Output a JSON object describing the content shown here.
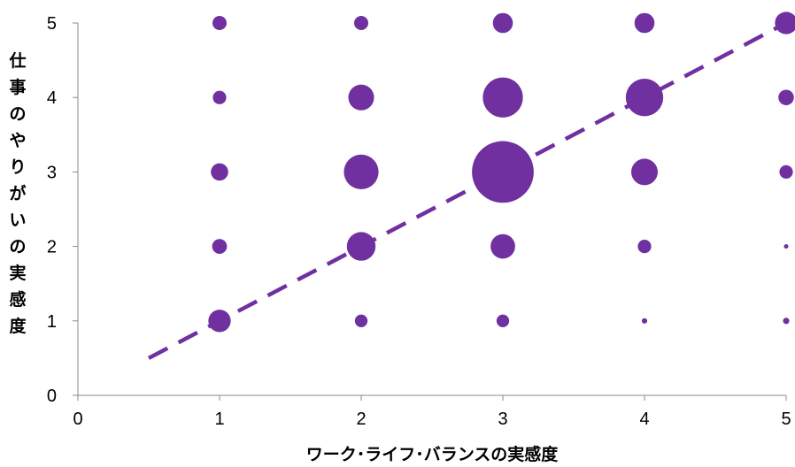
{
  "chart_data": {
    "type": "scatter",
    "subtype": "bubble",
    "xlabel": "ワーク･ライフ･バランスの実感度",
    "ylabel": "仕事のやりがいの実感度",
    "xlim": [
      0,
      5
    ],
    "ylim": [
      0,
      5
    ],
    "x_ticks": [
      "0",
      "1",
      "2",
      "3",
      "4",
      "5"
    ],
    "y_ticks": [
      "0",
      "1",
      "2",
      "3",
      "4",
      "5"
    ],
    "grid": false,
    "legend": "none",
    "marker_color": "#7030A0",
    "points": [
      {
        "x": 1,
        "y": 5,
        "size": 1.0
      },
      {
        "x": 2,
        "y": 5,
        "size": 1.0
      },
      {
        "x": 3,
        "y": 5,
        "size": 2.0
      },
      {
        "x": 4,
        "y": 5,
        "size": 2.0
      },
      {
        "x": 5,
        "y": 5,
        "size": 2.5
      },
      {
        "x": 1,
        "y": 4,
        "size": 0.9
      },
      {
        "x": 2,
        "y": 4,
        "size": 3.3
      },
      {
        "x": 3,
        "y": 4,
        "size": 8.0
      },
      {
        "x": 4,
        "y": 4,
        "size": 7.0
      },
      {
        "x": 5,
        "y": 4,
        "size": 1.2
      },
      {
        "x": 1,
        "y": 3,
        "size": 1.5
      },
      {
        "x": 2,
        "y": 3,
        "size": 6.0
      },
      {
        "x": 3,
        "y": 3,
        "size": 19.0
      },
      {
        "x": 4,
        "y": 3,
        "size": 3.5
      },
      {
        "x": 5,
        "y": 3,
        "size": 0.9
      },
      {
        "x": 1,
        "y": 2,
        "size": 1.1
      },
      {
        "x": 2,
        "y": 2,
        "size": 4.1
      },
      {
        "x": 3,
        "y": 2,
        "size": 3.0
      },
      {
        "x": 4,
        "y": 2,
        "size": 0.9
      },
      {
        "x": 5,
        "y": 2,
        "size": 0.1
      },
      {
        "x": 1,
        "y": 1,
        "size": 2.5
      },
      {
        "x": 2,
        "y": 1,
        "size": 0.8
      },
      {
        "x": 3,
        "y": 1,
        "size": 0.8
      },
      {
        "x": 4,
        "y": 1,
        "size": 0.15
      },
      {
        "x": 5,
        "y": 1,
        "size": 0.2
      }
    ],
    "trendline": {
      "style": "dashed",
      "x": [
        0.5,
        5.0
      ],
      "y": [
        0.5,
        5.0
      ]
    }
  }
}
